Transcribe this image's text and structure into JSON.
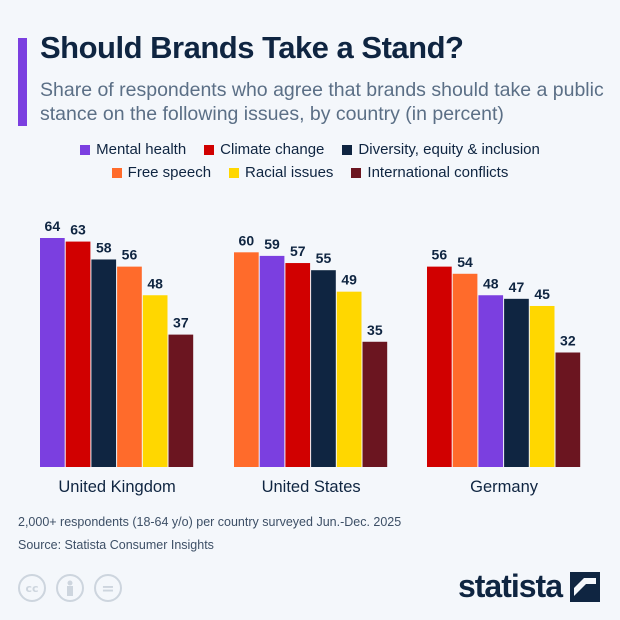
{
  "header": {
    "title": "Should Brands Take a Stand?",
    "subtitle": "Share of respondents who agree that brands should take a public stance on the following issues, by country (in percent)"
  },
  "colors": {
    "Mental health": "#7b3fe0",
    "Climate change": "#d10000",
    "Diversity, equity & inclusion": "#0f2541",
    "Free speech": "#ff6b2b",
    "Racial issues": "#ffd700",
    "International conflicts": "#6b1520",
    "accent": "#7b3fe0"
  },
  "legend": {
    "row1": [
      "Mental health",
      "Climate change",
      "Diversity, equity & inclusion"
    ],
    "row2": [
      "Free speech",
      "Racial issues",
      "International conflicts"
    ]
  },
  "chart_data": {
    "type": "bar",
    "categories": [
      "United Kingdom",
      "United States",
      "Germany"
    ],
    "ylim": [
      0,
      70
    ],
    "grid": false,
    "legend_position": "top",
    "groups": [
      {
        "category": "United Kingdom",
        "bars": [
          {
            "series": "Mental health",
            "value": 64
          },
          {
            "series": "Climate change",
            "value": 63
          },
          {
            "series": "Diversity, equity & inclusion",
            "value": 58
          },
          {
            "series": "Free speech",
            "value": 56
          },
          {
            "series": "Racial issues",
            "value": 48
          },
          {
            "series": "International conflicts",
            "value": 37
          }
        ]
      },
      {
        "category": "United States",
        "bars": [
          {
            "series": "Free speech",
            "value": 60
          },
          {
            "series": "Mental health",
            "value": 59
          },
          {
            "series": "Climate change",
            "value": 57
          },
          {
            "series": "Diversity, equity & inclusion",
            "value": 55
          },
          {
            "series": "Racial issues",
            "value": 49
          },
          {
            "series": "International conflicts",
            "value": 35
          }
        ]
      },
      {
        "category": "Germany",
        "bars": [
          {
            "series": "Climate change",
            "value": 56
          },
          {
            "series": "Free speech",
            "value": 54
          },
          {
            "series": "Mental health",
            "value": 48
          },
          {
            "series": "Diversity, equity & inclusion",
            "value": 47
          },
          {
            "series": "Racial issues",
            "value": 45
          },
          {
            "series": "International conflicts",
            "value": 32
          }
        ]
      }
    ]
  },
  "footer": {
    "note": "2,000+ respondents (18-64 y/o) per country surveyed Jun.-Dec. 2025",
    "source": "Source: Statista Consumer Insights",
    "cc_label": "cc",
    "brand": "statista"
  }
}
